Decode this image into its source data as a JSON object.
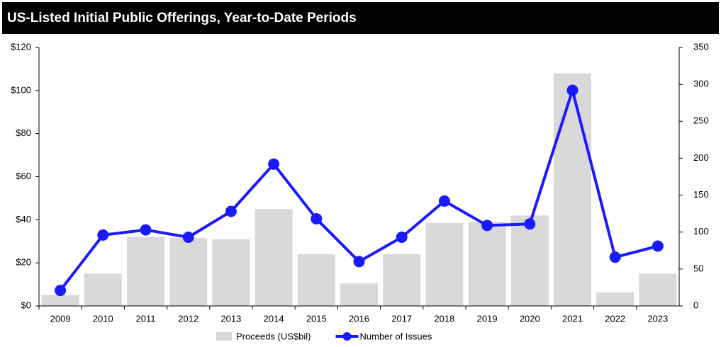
{
  "chart_data": {
    "type": "bar_line",
    "title": "US-Listed Initial Public Offerings, Year-to-Date Periods",
    "categories": [
      "2009",
      "2010",
      "2011",
      "2012",
      "2013",
      "2014",
      "2015",
      "2016",
      "2017",
      "2018",
      "2019",
      "2020",
      "2021",
      "2022",
      "2023"
    ],
    "series": [
      {
        "name": "Proceeds (US$bil)",
        "type": "bar",
        "color": "#d9d9d9",
        "values": [
          5,
          15,
          32,
          31.5,
          31,
          45,
          24,
          10.5,
          24,
          38.5,
          39,
          42,
          108,
          6.3,
          15
        ]
      },
      {
        "name": "Number of Issues",
        "type": "line",
        "color": "#1a1aff",
        "axis": "y2",
        "values": [
          21,
          96,
          103,
          93,
          128,
          192,
          118,
          60,
          93,
          142,
          109,
          111,
          292,
          66,
          81
        ]
      }
    ],
    "ylim": [
      0,
      120
    ],
    "yticks": [
      {
        "value": 0,
        "label": "$0"
      },
      {
        "value": 20,
        "label": "$20"
      },
      {
        "value": 40,
        "label": "$40"
      },
      {
        "value": 60,
        "label": "$60"
      },
      {
        "value": 80,
        "label": "$80"
      },
      {
        "value": 100,
        "label": "$100"
      },
      {
        "value": 120,
        "label": "$120"
      }
    ],
    "y2lim": [
      0,
      350
    ],
    "y2ticks": [
      0,
      50,
      100,
      150,
      200,
      250,
      300,
      350
    ],
    "grid": false
  }
}
